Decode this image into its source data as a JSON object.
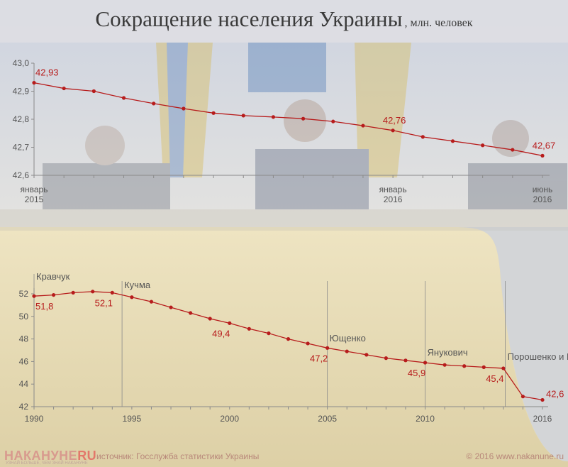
{
  "title": {
    "main": "Сокращение населения Украины",
    "sub": ", млн. человек"
  },
  "colors": {
    "line": "#b71c1c",
    "axis": "#8a8a8a",
    "top_panel": "#d9dde6",
    "bottom_panel": "#e8dcb4"
  },
  "chart_data": [
    {
      "type": "line",
      "x_tick_labels": [
        {
          "x": "2015-01",
          "line1": "январь",
          "line2": "2015"
        },
        {
          "x": "2016-01",
          "line1": "январь",
          "line2": "2016"
        },
        {
          "x": "2016-06",
          "line1": "июнь",
          "line2": "2016"
        }
      ],
      "y_ticks": [
        "43,0",
        "42,9",
        "42,8",
        "42,7",
        "42,6"
      ],
      "ylim": [
        42.6,
        43.0
      ],
      "x": [
        "2015-01",
        "2015-02",
        "2015-03",
        "2015-04",
        "2015-05",
        "2015-06",
        "2015-07",
        "2015-08",
        "2015-09",
        "2015-10",
        "2015-11",
        "2015-12",
        "2016-01",
        "2016-02",
        "2016-03",
        "2016-04",
        "2016-05",
        "2016-06"
      ],
      "values": [
        42.93,
        42.91,
        42.9,
        42.876,
        42.856,
        42.838,
        42.822,
        42.813,
        42.808,
        42.802,
        42.792,
        42.777,
        42.76,
        42.737,
        42.722,
        42.707,
        42.691,
        42.67
      ],
      "data_labels": [
        {
          "index": 0,
          "text": "42,93"
        },
        {
          "index": 12,
          "text": "42,76"
        },
        {
          "index": 17,
          "text": "42,67"
        }
      ]
    },
    {
      "type": "line",
      "xlim": [
        1990,
        2016
      ],
      "ylim": [
        42,
        52
      ],
      "x_ticks": [
        "1990",
        "1995",
        "2000",
        "2005",
        "2010",
        "2016"
      ],
      "y_ticks": [
        "52",
        "50",
        "48",
        "46",
        "44",
        "42"
      ],
      "x": [
        1990,
        1991,
        1992,
        1993,
        1994,
        1995,
        1996,
        1997,
        1998,
        1999,
        2000,
        2001,
        2002,
        2003,
        2004,
        2005,
        2006,
        2007,
        2008,
        2009,
        2010,
        2011,
        2012,
        2013,
        2014,
        2015,
        2016
      ],
      "values": [
        51.8,
        51.9,
        52.1,
        52.2,
        52.1,
        51.7,
        51.3,
        50.8,
        50.3,
        49.8,
        49.4,
        48.9,
        48.5,
        48.0,
        47.6,
        47.2,
        46.9,
        46.6,
        46.3,
        46.1,
        45.9,
        45.7,
        45.6,
        45.5,
        45.4,
        42.9,
        42.6
      ],
      "data_labels": [
        {
          "index": 0,
          "text": "51,8"
        },
        {
          "index": 4,
          "text": "52,1"
        },
        {
          "index": 10,
          "text": "49,4"
        },
        {
          "index": 15,
          "text": "47,2"
        },
        {
          "index": 20,
          "text": "45,9"
        },
        {
          "index": 24,
          "text": "45,4"
        },
        {
          "index": 26,
          "text": "42,6"
        }
      ],
      "annotations": [
        {
          "x": 1990,
          "text": "Кравчук"
        },
        {
          "x": 1994.5,
          "text": "Кучма"
        },
        {
          "x": 2005,
          "text": "Ющенко"
        },
        {
          "x": 2010,
          "text": "Янукович"
        },
        {
          "x": 2014.1,
          "text": "Порошенко и Ко"
        }
      ]
    }
  ],
  "footer": {
    "logo_main": "НАКАНУНЕ",
    "logo_accent": "RU",
    "logo_tagline": "УЗНАЙ БОЛЬШЕ, ЧЕМ ЗНАЙ НАКАНУНЕ",
    "source": "источник: Госслужба статистики Украины",
    "copyright": "© 2016 www.nakanune.ru"
  }
}
